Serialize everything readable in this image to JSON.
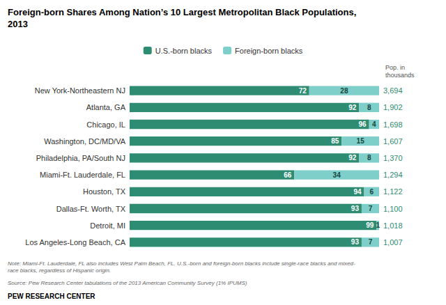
{
  "chart_data": {
    "type": "bar",
    "orientation": "horizontal",
    "stacked": true,
    "data_labels": true,
    "tick_labels": "y",
    "grid": false,
    "legend": "top",
    "title": "Foreign-born Shares Among Nation’s 10 Largest Metropolitan Black Populations,\n2013",
    "categories": [
      "New York-Northeastern NJ",
      "Atlanta, GA",
      "Chicago, IL",
      "Washington, DC/MD/VA",
      "Philadelphia, PA/South NJ",
      "Miami-Ft. Lauderdale, FL",
      "Houston, TX",
      "Dallas-Ft. Worth, TX",
      "Detroit, MI",
      "Los Angeles-Long Beach, CA"
    ],
    "series": [
      {
        "name": "U.S.-born blacks",
        "color": "#2d8c72",
        "values": [
          72,
          92,
          96,
          85,
          92,
          66,
          94,
          93,
          99,
          93
        ]
      },
      {
        "name": "Foreign-born blacks",
        "color": "#7ececa",
        "values": [
          28,
          8,
          4,
          15,
          8,
          34,
          6,
          7,
          1,
          7
        ]
      }
    ],
    "xlim": [
      0,
      100
    ],
    "population_title": "Pop. in\nthousands",
    "population": [
      "3,694",
      "1,902",
      "1,698",
      "1,607",
      "1,370",
      "1,294",
      "1,122",
      "1,100",
      "1,018",
      "1,007"
    ],
    "note": "Note: Miami-Ft. Lauderdale, FL also includes West Palm Beach, FL. U.S.-born and foreign-born blacks include single-race blacks and mixed-\nrace blacks, regardless of Hispanic origin.",
    "source": "Source: Pew Research Center tabulations of the 2013 American Community Survey (1% IPUMS)",
    "footer": "PEW RESEARCH CENTER"
  }
}
